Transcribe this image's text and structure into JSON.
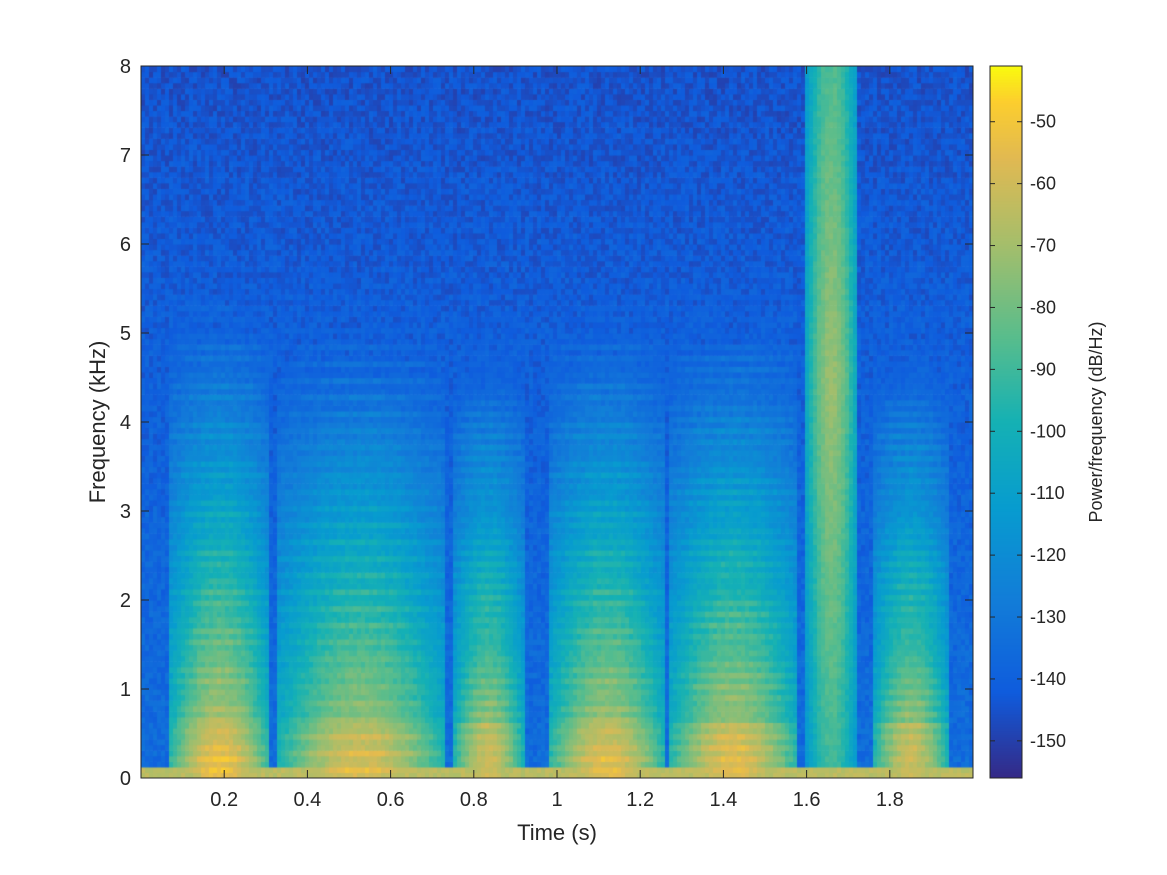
{
  "chart_data": {
    "type": "heatmap",
    "title": "",
    "xlabel": "Time (s)",
    "ylabel": "Frequency (kHz)",
    "colorbar_label": "Power/frequency (dB/Hz)",
    "xlim": [
      0,
      2.0
    ],
    "ylim": [
      0,
      8
    ],
    "clim": [
      -156,
      -41
    ],
    "colormap": "parula",
    "x_ticks": [
      0.2,
      0.4,
      0.6,
      0.8,
      1,
      1.2,
      1.4,
      1.6,
      1.8
    ],
    "x_tick_labels": [
      "0.2",
      "0.4",
      "0.6",
      "0.8",
      "1",
      "1.2",
      "1.4",
      "1.6",
      "1.8"
    ],
    "y_ticks": [
      0,
      1,
      2,
      3,
      4,
      5,
      6,
      7,
      8
    ],
    "y_tick_labels": [
      "0",
      "1",
      "2",
      "3",
      "4",
      "5",
      "6",
      "7",
      "8"
    ],
    "colorbar_ticks": [
      -50,
      -60,
      -70,
      -80,
      -90,
      -100,
      -110,
      -120,
      -130,
      -140,
      -150
    ],
    "colorbar_tick_labels": [
      "-50",
      "-60",
      "-70",
      "-80",
      "-90",
      "-100",
      "-110",
      "-120",
      "-130",
      "-140",
      "-150"
    ],
    "voiced_segments": [
      {
        "t_start": 0.07,
        "t_end": 0.31,
        "f0_hz": 110,
        "peak_db": -55
      },
      {
        "t_start": 0.33,
        "t_end": 0.73,
        "f0_hz": 95,
        "peak_db": -60
      },
      {
        "t_start": 0.75,
        "t_end": 0.92,
        "f0_hz": 120,
        "peak_db": -62
      },
      {
        "t_start": 0.98,
        "t_end": 1.26,
        "f0_hz": 110,
        "peak_db": -58
      },
      {
        "t_start": 1.27,
        "t_end": 1.58,
        "f0_hz": 115,
        "peak_db": -58
      },
      {
        "t_start": 1.6,
        "t_end": 1.72,
        "f0_hz": 0,
        "peak_db": -72
      },
      {
        "t_start": 1.76,
        "t_end": 1.94,
        "f0_hz": 120,
        "peak_db": -62
      }
    ],
    "noise_floor_db": -145
  }
}
